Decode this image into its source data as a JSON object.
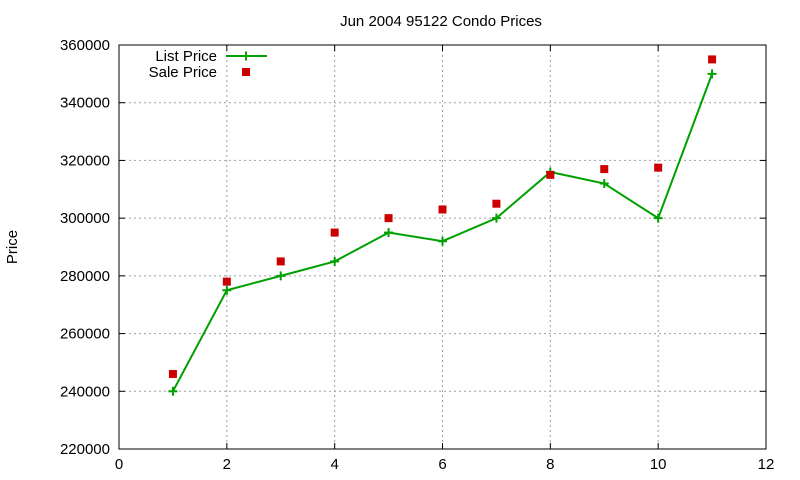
{
  "chart_data": {
    "type": "line",
    "title": "Jun 2004 95122 Condo Prices",
    "xlabel": "",
    "ylabel": "Price",
    "xlim": [
      0,
      12
    ],
    "ylim": [
      220000,
      360000
    ],
    "x_ticks": [
      0,
      2,
      4,
      6,
      8,
      10,
      12
    ],
    "y_ticks": [
      220000,
      240000,
      260000,
      280000,
      300000,
      320000,
      340000,
      360000
    ],
    "grid": true,
    "legend_position": "top-left",
    "series": [
      {
        "name": "List Price",
        "style": "line-with-plus-markers",
        "color": "#00a000",
        "x": [
          1,
          2,
          3,
          4,
          5,
          6,
          7,
          8,
          9,
          10,
          11
        ],
        "values": [
          240000,
          275000,
          280000,
          285000,
          295000,
          292000,
          300000,
          316000,
          312000,
          300000,
          350000
        ]
      },
      {
        "name": "Sale Price",
        "style": "square-markers",
        "color": "#cc0000",
        "x": [
          1,
          2,
          3,
          4,
          5,
          6,
          7,
          8,
          9,
          10,
          11
        ],
        "values": [
          246000,
          278000,
          285000,
          295000,
          300000,
          303000,
          305000,
          315000,
          317000,
          317500,
          355000
        ]
      }
    ]
  }
}
